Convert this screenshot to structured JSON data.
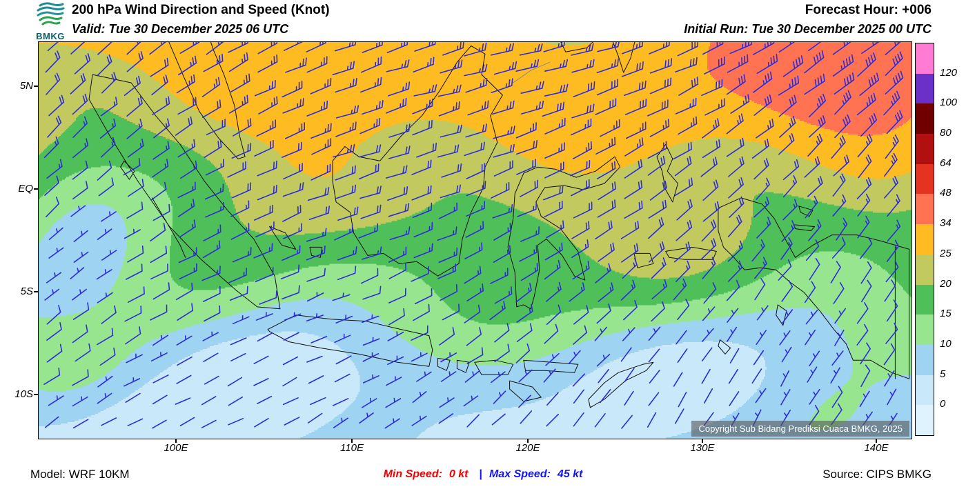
{
  "header": {
    "logo_text": "BMKG",
    "title": "200 hPa Wind Direction and Speed (Knot)",
    "valid": "Valid: Tue 30 December 2025 06 UTC",
    "forecast_hour": "Forecast Hour: +006",
    "initial_run": "Initial Run: Tue 30 December 2025 00 UTC"
  },
  "map": {
    "lat_ticks": [
      "5N",
      "EQ",
      "5S",
      "10S"
    ],
    "lon_ticks": [
      "100E",
      "110E",
      "120E",
      "130E",
      "140E"
    ],
    "copyright": "Copyright Sub Bidang Prediksi Cuaca BMKG, 2025"
  },
  "colorbar": {
    "labels": [
      "120",
      "100",
      "80",
      "64",
      "48",
      "34",
      "25",
      "20",
      "15",
      "10",
      "5",
      "0"
    ],
    "colors_top_to_bottom": [
      "#ff7bd4",
      "#6a30c8",
      "#700000",
      "#b01010",
      "#e53322",
      "#ff7352",
      "#ffbb22",
      "#c2c95f",
      "#4fbf5a",
      "#97e68f",
      "#9fd3f2",
      "#c9e8fa",
      "#def3fd"
    ]
  },
  "footer": {
    "model": "Model: WRF 10KM",
    "min_speed_label": "Min Speed:",
    "min_speed_value": "0 kt",
    "separator": "|",
    "max_speed_label": "Max Speed:",
    "max_speed_value": "45 kt",
    "source": "Source: CIPS BMKG"
  },
  "colors": {
    "min_speed_text": "#f50000",
    "max_speed_text": "#1414f0",
    "barb": "#2d2dd8",
    "coastline": "#101010"
  },
  "chart_data": {
    "type": "heatmap",
    "title": "200 hPa Wind Direction and Speed (Knot)",
    "colorbar_levels_knots": [
      0,
      5,
      10,
      15,
      20,
      25,
      34,
      48,
      64,
      80,
      100,
      120
    ],
    "lat_ticks": [
      "5N",
      "EQ",
      "5S",
      "10S"
    ],
    "lon_ticks": [
      "100E",
      "110E",
      "120E",
      "130E",
      "140E"
    ],
    "min_speed_kt": 0,
    "max_speed_kt": 45,
    "legend_position": "right",
    "overlay": "wind-barbs"
  }
}
